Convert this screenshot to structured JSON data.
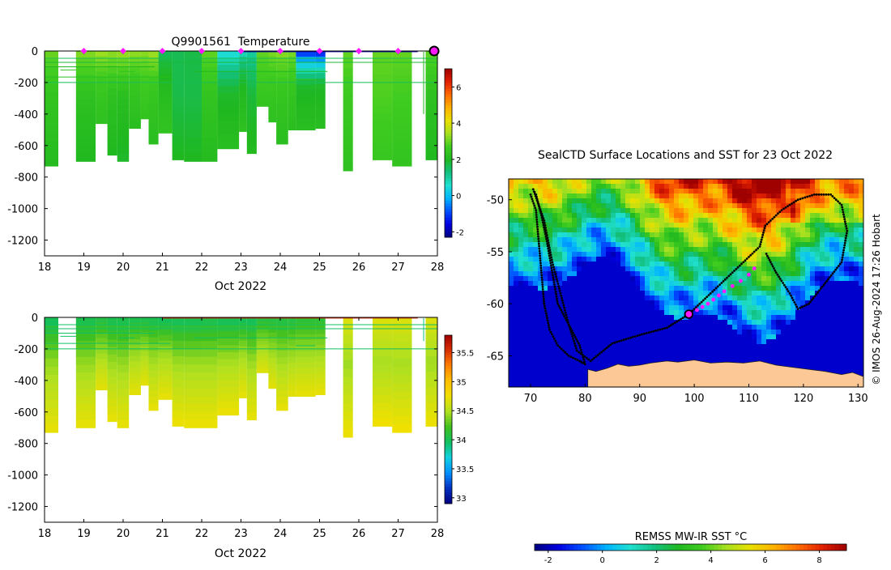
{
  "page": {
    "credit": "© IMOS 26-Aug-2024 17:26 Hobart"
  },
  "colors": {
    "magenta": "#ff19ff",
    "land": "#fcc996",
    "frame": "#000000",
    "track": "#000000",
    "temp_cmap": [
      "#00007f",
      "#0000e0",
      "#0050ff",
      "#00b4ff",
      "#20e0d0",
      "#12c080",
      "#20b820",
      "#40cc20",
      "#a8e020",
      "#e8e000",
      "#ffb000",
      "#ff6a00",
      "#e02000",
      "#9f0000"
    ],
    "sal_cmap": [
      "#00007f",
      "#0030c0",
      "#0090ff",
      "#10d0e0",
      "#10c060",
      "#40c020",
      "#b0e020",
      "#f0e000",
      "#ffc000",
      "#ff8000",
      "#d83000",
      "#9f0000"
    ]
  },
  "chart_data": [
    {
      "id": "temperature_section",
      "type": "heatmap",
      "title": "Q9901561  Temperature",
      "xlabel": "Oct 2022",
      "ylabel": "",
      "xlim": [
        18,
        28
      ],
      "ylim": [
        -1300,
        0
      ],
      "xticks": [
        18,
        19,
        20,
        21,
        22,
        23,
        24,
        25,
        26,
        27,
        28
      ],
      "yticks": [
        0,
        -200,
        -400,
        -600,
        -800,
        -1000,
        -1200
      ],
      "colorbar": {
        "ticks": [
          6,
          4,
          2,
          0,
          -2
        ],
        "range": [
          -2.3,
          7
        ]
      },
      "surface_markers": [
        19,
        20,
        21,
        22,
        23,
        24,
        25,
        26,
        27
      ],
      "current_marker": 28,
      "profiles": [
        {
          "t0": 18.0,
          "t1": 18.35,
          "depth": 730,
          "surface": 3.1,
          "deep": 2.1
        },
        {
          "t0": 18.8,
          "t1": 19.3,
          "depth": 700,
          "surface": 3.3,
          "deep": 2.0
        },
        {
          "t0": 19.3,
          "t1": 19.6,
          "depth": 460,
          "surface": 3.5,
          "deep": 2.3
        },
        {
          "t0": 19.6,
          "t1": 19.85,
          "depth": 660,
          "surface": 3.4,
          "deep": 2.0
        },
        {
          "t0": 19.85,
          "t1": 20.15,
          "depth": 700,
          "surface": 3.5,
          "deep": 1.9
        },
        {
          "t0": 20.15,
          "t1": 20.45,
          "depth": 490,
          "surface": 3.4,
          "deep": 2.2
        },
        {
          "t0": 20.45,
          "t1": 20.65,
          "depth": 430,
          "surface": 3.3,
          "deep": 2.4
        },
        {
          "t0": 20.65,
          "t1": 20.9,
          "depth": 590,
          "surface": 3.5,
          "deep": 2.2
        },
        {
          "t0": 20.9,
          "t1": 21.25,
          "depth": 520,
          "surface": 1.5,
          "deep": 2.4
        },
        {
          "t0": 21.25,
          "t1": 21.55,
          "depth": 690,
          "surface": 1.6,
          "deep": 2.0
        },
        {
          "t0": 21.55,
          "t1": 22.0,
          "depth": 700,
          "surface": 1.7,
          "deep": 2.0
        },
        {
          "t0": 22.0,
          "t1": 22.4,
          "depth": 700,
          "surface": 3.0,
          "deep": 2.1
        },
        {
          "t0": 22.4,
          "t1": 22.95,
          "depth": 620,
          "surface": 0.2,
          "deep": 2.2
        },
        {
          "t0": 22.95,
          "t1": 23.15,
          "depth": 510,
          "surface": 0.6,
          "deep": 2.3
        },
        {
          "t0": 23.15,
          "t1": 23.4,
          "depth": 650,
          "surface": 0.9,
          "deep": 2.1
        },
        {
          "t0": 23.4,
          "t1": 23.7,
          "depth": 350,
          "surface": 3.0,
          "deep": 2.4
        },
        {
          "t0": 23.7,
          "t1": 23.9,
          "depth": 450,
          "surface": 3.2,
          "deep": 2.3
        },
        {
          "t0": 23.9,
          "t1": 24.2,
          "depth": 590,
          "surface": 3.3,
          "deep": 2.2
        },
        {
          "t0": 24.2,
          "t1": 24.4,
          "depth": 500,
          "surface": 3.2,
          "deep": 2.2
        },
        {
          "t0": 24.4,
          "t1": 24.9,
          "depth": 500,
          "surface": -1.6,
          "deep": 2.2
        },
        {
          "t0": 24.9,
          "t1": 25.15,
          "depth": 490,
          "surface": -1.8,
          "deep": 2.2
        },
        {
          "t0": 25.6,
          "t1": 25.85,
          "depth": 760,
          "surface": 3.0,
          "deep": 2.3
        },
        {
          "t0": 26.35,
          "t1": 26.85,
          "depth": 690,
          "surface": 3.0,
          "deep": 2.5
        },
        {
          "t0": 26.85,
          "t1": 27.35,
          "depth": 730,
          "surface": 3.0,
          "deep": 2.4
        },
        {
          "t0": 27.7,
          "t1": 28.0,
          "depth": 690,
          "surface": 3.0,
          "deep": 2.0
        }
      ]
    },
    {
      "id": "salinity_section",
      "type": "heatmap",
      "title": "",
      "xlabel": "Oct 2022",
      "ylabel": "",
      "xlim": [
        18,
        28
      ],
      "ylim": [
        -1300,
        0
      ],
      "xticks": [
        18,
        19,
        20,
        21,
        22,
        23,
        24,
        25,
        26,
        27,
        28
      ],
      "yticks": [
        0,
        -200,
        -400,
        -600,
        -800,
        -1000,
        -1200
      ],
      "colorbar": {
        "ticks": [
          35.5,
          35,
          34.5,
          34,
          33.5,
          33
        ],
        "range": [
          32.9,
          35.8
        ]
      },
      "profiles": [
        {
          "t0": 18.0,
          "t1": 18.35,
          "depth": 730,
          "surface": 33.9,
          "deep": 34.72
        },
        {
          "t0": 18.8,
          "t1": 19.3,
          "depth": 700,
          "surface": 33.95,
          "deep": 34.72
        },
        {
          "t0": 19.3,
          "t1": 19.6,
          "depth": 460,
          "surface": 34.0,
          "deep": 34.7
        },
        {
          "t0": 19.6,
          "t1": 19.85,
          "depth": 660,
          "surface": 33.95,
          "deep": 34.72
        },
        {
          "t0": 19.85,
          "t1": 20.15,
          "depth": 700,
          "surface": 33.95,
          "deep": 34.72
        },
        {
          "t0": 20.15,
          "t1": 20.45,
          "depth": 490,
          "surface": 33.95,
          "deep": 34.7
        },
        {
          "t0": 20.45,
          "t1": 20.65,
          "depth": 430,
          "surface": 33.95,
          "deep": 34.7
        },
        {
          "t0": 20.65,
          "t1": 20.9,
          "depth": 590,
          "surface": 33.95,
          "deep": 34.72
        },
        {
          "t0": 20.9,
          "t1": 21.25,
          "depth": 520,
          "surface": 33.9,
          "deep": 34.72
        },
        {
          "t0": 21.25,
          "t1": 21.55,
          "depth": 690,
          "surface": 33.9,
          "deep": 34.74
        },
        {
          "t0": 21.55,
          "t1": 22.0,
          "depth": 700,
          "surface": 33.92,
          "deep": 34.74
        },
        {
          "t0": 22.0,
          "t1": 22.4,
          "depth": 700,
          "surface": 33.95,
          "deep": 34.74
        },
        {
          "t0": 22.4,
          "t1": 22.95,
          "depth": 620,
          "surface": 33.9,
          "deep": 34.74
        },
        {
          "t0": 22.95,
          "t1": 23.15,
          "depth": 510,
          "surface": 33.9,
          "deep": 34.72
        },
        {
          "t0": 23.15,
          "t1": 23.4,
          "depth": 650,
          "surface": 33.9,
          "deep": 34.72
        },
        {
          "t0": 23.4,
          "t1": 23.7,
          "depth": 350,
          "surface": 34.0,
          "deep": 34.68
        },
        {
          "t0": 23.7,
          "t1": 23.9,
          "depth": 450,
          "surface": 34.0,
          "deep": 34.7
        },
        {
          "t0": 23.9,
          "t1": 24.2,
          "depth": 590,
          "surface": 34.0,
          "deep": 34.72
        },
        {
          "t0": 24.2,
          "t1": 24.4,
          "depth": 500,
          "surface": 34.0,
          "deep": 34.7
        },
        {
          "t0": 24.4,
          "t1": 24.9,
          "depth": 500,
          "surface": 34.05,
          "deep": 34.72
        },
        {
          "t0": 24.9,
          "t1": 25.15,
          "depth": 490,
          "surface": 34.05,
          "deep": 34.72
        },
        {
          "t0": 25.6,
          "t1": 25.85,
          "depth": 760,
          "surface": 34.7,
          "deep": 34.74
        },
        {
          "t0": 26.35,
          "t1": 26.85,
          "depth": 690,
          "surface": 34.7,
          "deep": 34.76
        },
        {
          "t0": 26.85,
          "t1": 27.35,
          "depth": 730,
          "surface": 34.7,
          "deep": 34.76
        },
        {
          "t0": 27.7,
          "t1": 28.0,
          "depth": 690,
          "surface": 34.7,
          "deep": 34.74
        }
      ]
    },
    {
      "id": "sst_map",
      "type": "heatmap",
      "title": "SealCTD Surface Locations and SST for 23 Oct 2022",
      "xlabel": "",
      "ylabel": "",
      "xlim": [
        66,
        131
      ],
      "ylim": [
        -68,
        -48
      ],
      "xticks": [
        70,
        80,
        90,
        100,
        110,
        120,
        130
      ],
      "yticks": [
        -50,
        -55,
        -60,
        -65
      ],
      "sst_range": [
        -2.5,
        9
      ],
      "track": [
        [
          70,
          -49.5
        ],
        [
          71,
          -51
        ],
        [
          71.5,
          -54
        ],
        [
          72,
          -57
        ],
        [
          72.5,
          -60
        ],
        [
          73.5,
          -62.5
        ],
        [
          75,
          -64
        ],
        [
          77,
          -65
        ],
        [
          79,
          -65.5
        ],
        [
          80,
          -65.8
        ],
        [
          79,
          -64
        ],
        [
          77,
          -62
        ],
        [
          75,
          -60
        ],
        [
          74,
          -57
        ],
        [
          73,
          -54
        ],
        [
          72,
          -51.5
        ],
        [
          71,
          -49.5
        ],
        [
          70.5,
          -49
        ],
        [
          72.5,
          -52
        ],
        [
          74,
          -56
        ],
        [
          75.5,
          -59
        ],
        [
          77,
          -62
        ],
        [
          78.5,
          -64.5
        ],
        [
          81,
          -65.5
        ],
        [
          85,
          -63.8
        ],
        [
          90,
          -63
        ],
        [
          95,
          -62.3
        ],
        [
          99,
          -61
        ],
        [
          103,
          -59
        ],
        [
          106,
          -57.5
        ],
        [
          109,
          -56
        ],
        [
          112,
          -54.5
        ],
        [
          113,
          -52.5
        ],
        [
          116,
          -51
        ],
        [
          119,
          -50
        ],
        [
          122,
          -49.5
        ],
        [
          125,
          -49.5
        ],
        [
          127,
          -50.5
        ],
        [
          128,
          -53
        ],
        [
          127,
          -56
        ],
        [
          124,
          -58
        ],
        [
          121,
          -60
        ],
        [
          119,
          -60.5
        ],
        [
          117.5,
          -59
        ],
        [
          115,
          -57
        ],
        [
          113,
          -55
        ]
      ],
      "recent_positions": [
        [
          100.5,
          -60.6
        ],
        [
          101.5,
          -60.3
        ],
        [
          102.5,
          -60
        ],
        [
          103.5,
          -59.6
        ],
        [
          104.5,
          -59.2
        ],
        [
          105.5,
          -58.8
        ],
        [
          107,
          -58.3
        ],
        [
          108.5,
          -57.8
        ],
        [
          110,
          -57.2
        ],
        [
          111,
          -56.6
        ]
      ],
      "current_position": [
        99,
        -61
      ],
      "colorbar": {
        "label": "REMSS MW-IR SST °C",
        "ticks": [
          -2,
          0,
          2,
          4,
          6,
          8
        ]
      }
    }
  ]
}
